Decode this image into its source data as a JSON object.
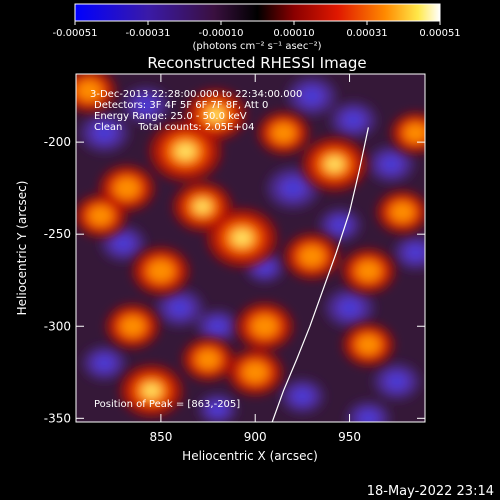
{
  "colorbar": {
    "ticks": [
      "-0.00051",
      "-0.00031",
      "-0.00010",
      "0.00010",
      "0.00031",
      "0.00051"
    ],
    "units": "(photons cm⁻² s⁻¹ asec⁻²)"
  },
  "title": "Reconstructed RHESSI Image",
  "info": {
    "time_range": "3-Dec-2013 22:28:00.000 to 22:34:00.000",
    "detectors": "Detectors: 3F 4F 5F 6F 7F 8F, Att 0",
    "energy": "Energy Range: 25.0 - 50.0 keV",
    "algorithm": "Clean     Total counts: 2.05E+04",
    "peak": "Position of Peak = [863,-205]"
  },
  "footer": "18-May-2022 23:14",
  "chart_data": {
    "type": "heatmap",
    "title": "Reconstructed RHESSI Image",
    "xlabel": "Heliocentric X (arcsec)",
    "ylabel": "Heliocentric Y (arcsec)",
    "xlim": [
      805,
      990
    ],
    "ylim": [
      -352,
      -163
    ],
    "x_ticks": [
      850,
      900,
      950
    ],
    "y_ticks": [
      -200,
      -250,
      -300,
      -350
    ],
    "x_tick_labels": [
      "850",
      "900",
      "950"
    ],
    "y_tick_labels": [
      "-200",
      "-250",
      "-300",
      "-350"
    ],
    "colorbar_range": [
      -0.00051,
      0.00051
    ],
    "peak_position": [
      863,
      -205
    ],
    "limb_curve": [
      [
        909,
        -352
      ],
      [
        915,
        -335
      ],
      [
        922,
        -318
      ],
      [
        929,
        -300
      ],
      [
        936,
        -280
      ],
      [
        943,
        -260
      ],
      [
        950,
        -238
      ],
      [
        955,
        -216
      ],
      [
        960,
        -192
      ]
    ],
    "hot_regions": [
      {
        "x": 863,
        "y": -205,
        "intensity": 1.0
      },
      {
        "x": 893,
        "y": -252,
        "intensity": 0.95
      },
      {
        "x": 879,
        "y": -185,
        "intensity": 0.7
      },
      {
        "x": 942,
        "y": -212,
        "intensity": 0.8
      },
      {
        "x": 832,
        "y": -225,
        "intensity": 0.55
      },
      {
        "x": 818,
        "y": -240,
        "intensity": 0.45
      },
      {
        "x": 850,
        "y": -270,
        "intensity": 0.6
      },
      {
        "x": 872,
        "y": -235,
        "intensity": 0.65
      },
      {
        "x": 905,
        "y": -300,
        "intensity": 0.6
      },
      {
        "x": 960,
        "y": -270,
        "intensity": 0.5
      },
      {
        "x": 978,
        "y": -238,
        "intensity": 0.45
      },
      {
        "x": 845,
        "y": -335,
        "intensity": 0.75
      },
      {
        "x": 900,
        "y": -325,
        "intensity": 0.55
      },
      {
        "x": 960,
        "y": -310,
        "intensity": 0.45
      },
      {
        "x": 915,
        "y": -195,
        "intensity": 0.45
      },
      {
        "x": 835,
        "y": -300,
        "intensity": 0.5
      },
      {
        "x": 930,
        "y": -262,
        "intensity": 0.55
      },
      {
        "x": 875,
        "y": -318,
        "intensity": 0.45
      },
      {
        "x": 812,
        "y": -172,
        "intensity": 0.5
      },
      {
        "x": 985,
        "y": -195,
        "intensity": 0.4
      }
    ],
    "cool_regions": [
      {
        "x": 820,
        "y": -195,
        "intensity": 0.8
      },
      {
        "x": 842,
        "y": -180,
        "intensity": 0.7
      },
      {
        "x": 930,
        "y": -175,
        "intensity": 0.8
      },
      {
        "x": 952,
        "y": -188,
        "intensity": 0.7
      },
      {
        "x": 920,
        "y": -225,
        "intensity": 0.9
      },
      {
        "x": 945,
        "y": -245,
        "intensity": 0.55
      },
      {
        "x": 972,
        "y": -212,
        "intensity": 0.7
      },
      {
        "x": 830,
        "y": -255,
        "intensity": 0.65
      },
      {
        "x": 860,
        "y": -290,
        "intensity": 0.75
      },
      {
        "x": 880,
        "y": -300,
        "intensity": 0.55
      },
      {
        "x": 950,
        "y": -290,
        "intensity": 0.8
      },
      {
        "x": 975,
        "y": -330,
        "intensity": 0.7
      },
      {
        "x": 925,
        "y": -338,
        "intensity": 0.6
      },
      {
        "x": 880,
        "y": -345,
        "intensity": 0.45
      },
      {
        "x": 820,
        "y": -320,
        "intensity": 0.6
      },
      {
        "x": 905,
        "y": -268,
        "intensity": 0.45
      },
      {
        "x": 985,
        "y": -260,
        "intensity": 0.6
      },
      {
        "x": 960,
        "y": -350,
        "intensity": 0.6
      }
    ]
  }
}
